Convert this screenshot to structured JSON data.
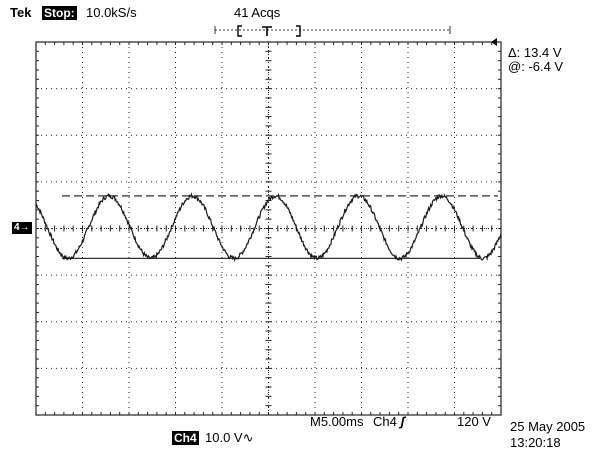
{
  "header": {
    "brand": "Tek",
    "state": "Stop:",
    "sample_rate": "10.0kS/s",
    "acquisitions": "41 Acqs"
  },
  "cursor": {
    "delta": "Δ: 13.4 V",
    "at": "@: -6.4 V"
  },
  "footer": {
    "timebase": "M5.00ms",
    "trigger_channel": "Ch4",
    "trigger_level": "120 V",
    "date": "25 May 2005",
    "time": "13:20:18",
    "channel": "Ch4",
    "channel_scale": "10.0 V∿"
  },
  "channel_marker": "4→",
  "colors": {
    "trace": "#1a1a1a",
    "grid": "#222222",
    "background": "#ffffff"
  },
  "chart_data": {
    "type": "line",
    "title": "",
    "x_divisions": 10,
    "y_divisions": 8,
    "volts_per_div": 10,
    "ms_per_div": 5,
    "series": [
      {
        "waveform": "sine",
        "cycles_on_screen": 5.6,
        "peak_volts": 7.0,
        "trough_volts": -6.4,
        "offset_volts": 0.3
      }
    ],
    "cursors": [
      {
        "style": "dashed",
        "volts": 7.0
      },
      {
        "style": "solid",
        "volts": -6.4
      }
    ]
  }
}
